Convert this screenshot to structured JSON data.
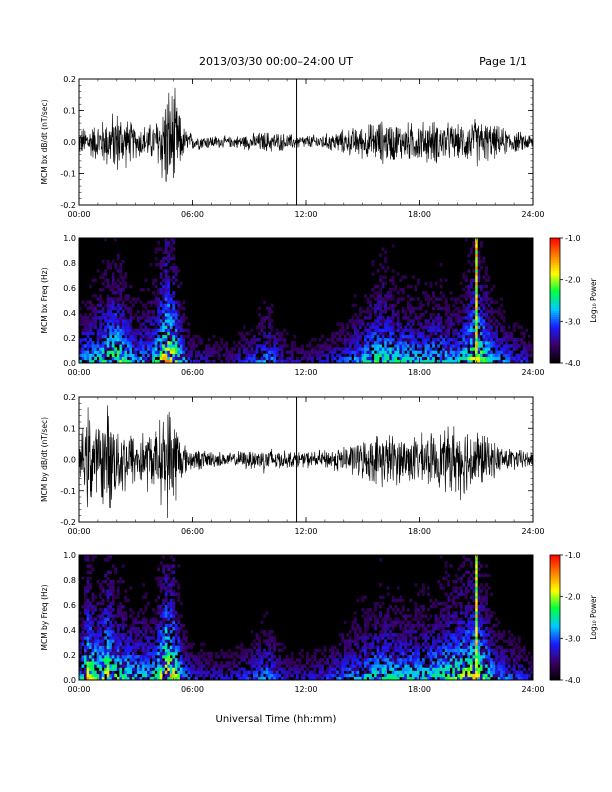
{
  "header": {
    "title": "2013/03/30  00:00–24:00 UT",
    "page": "Page 1/1"
  },
  "footer": {
    "xlabel": "Universal Time (hh:mm)"
  },
  "colors": {
    "trace": "#000000",
    "spectrogram_background": "#000000",
    "colorbar": [
      "#000000",
      "#3a0066",
      "#1a1aff",
      "#00c8ff",
      "#00ff40",
      "#ffff00",
      "#ff8000",
      "#ff0000"
    ]
  },
  "chart_data": [
    {
      "id": "bx-dbdt",
      "type": "line",
      "ylabel": "MCM bx dB/dt (nT/sec)",
      "ylim": [
        -0.2,
        0.2
      ],
      "yticks": [
        "-0.2",
        "-0.1",
        "0.0",
        "0.1",
        "0.2"
      ],
      "x_ticks": [
        "00:00",
        "06:00",
        "12:00",
        "18:00",
        "24:00"
      ],
      "xlim_hours": [
        0,
        24
      ],
      "spike_hours": [
        11.5
      ],
      "activity_envelope": {
        "hours": [
          0,
          1,
          2,
          3,
          4,
          4.6,
          5,
          5.5,
          6,
          8,
          10,
          11,
          12,
          13,
          14,
          15,
          16,
          17,
          18,
          19,
          20,
          21,
          22,
          23,
          24
        ],
        "amplitude": [
          0.05,
          0.07,
          0.12,
          0.06,
          0.07,
          0.2,
          0.2,
          0.06,
          0.03,
          0.02,
          0.04,
          0.03,
          0.025,
          0.03,
          0.045,
          0.06,
          0.08,
          0.07,
          0.075,
          0.08,
          0.06,
          0.09,
          0.06,
          0.04,
          0.03
        ]
      }
    },
    {
      "id": "bx-freq",
      "type": "heatmap",
      "ylabel": "MCM bx Freq (Hz)",
      "ylim": [
        0.0,
        1.0
      ],
      "yticks": [
        "0.0",
        "0.2",
        "0.4",
        "0.6",
        "0.8",
        "1.0"
      ],
      "x_ticks": [
        "00:00",
        "06:00",
        "12:00",
        "18:00",
        "24:00"
      ],
      "xlim_hours": [
        0,
        24
      ],
      "colorbar": {
        "label": "Log₁₀ Power",
        "ticks": [
          "-1.0",
          "-2.0",
          "-3.0",
          "-4.0"
        ],
        "range": [
          -4.0,
          -1.0
        ]
      },
      "highlight_hour": 21,
      "activity_envelope": {
        "hours": [
          0,
          1,
          2,
          3,
          4,
          4.6,
          5,
          5.5,
          6,
          8,
          10,
          11,
          12,
          13,
          14,
          15,
          16,
          17,
          18,
          19,
          20,
          21,
          22,
          23,
          24
        ],
        "amplitude": [
          0.5,
          0.6,
          0.8,
          0.5,
          0.6,
          1.0,
          0.9,
          0.5,
          0.3,
          0.25,
          0.5,
          0.3,
          0.25,
          0.3,
          0.4,
          0.55,
          0.7,
          0.6,
          0.55,
          0.6,
          0.5,
          0.9,
          0.5,
          0.4,
          0.3
        ]
      }
    },
    {
      "id": "by-dbdt",
      "type": "line",
      "ylabel": "MCM by dB/dt (nT/sec)",
      "ylim": [
        -0.2,
        0.2
      ],
      "yticks": [
        "-0.2",
        "-0.1",
        "0.0",
        "0.1",
        "0.2"
      ],
      "x_ticks": [
        "00:00",
        "06:00",
        "12:00",
        "18:00",
        "24:00"
      ],
      "xlim_hours": [
        0,
        24
      ],
      "spike_hours": [
        11.5
      ],
      "activity_envelope": {
        "hours": [
          0,
          0.5,
          1,
          1.5,
          2,
          3,
          3.5,
          4,
          4.6,
          5,
          5.5,
          6,
          8,
          10,
          11,
          12,
          13,
          14,
          15,
          16,
          17,
          18,
          19,
          20,
          21,
          22,
          23,
          24
        ],
        "amplitude": [
          0.05,
          0.2,
          0.12,
          0.2,
          0.14,
          0.1,
          0.12,
          0.1,
          0.2,
          0.2,
          0.06,
          0.04,
          0.025,
          0.05,
          0.03,
          0.03,
          0.035,
          0.05,
          0.07,
          0.1,
          0.09,
          0.09,
          0.1,
          0.14,
          0.12,
          0.06,
          0.04,
          0.03
        ]
      }
    },
    {
      "id": "by-freq",
      "type": "heatmap",
      "ylabel": "MCM by Freq (Hz)",
      "ylim": [
        0.0,
        1.0
      ],
      "yticks": [
        "0.0",
        "0.2",
        "0.4",
        "0.6",
        "0.8",
        "1.0"
      ],
      "x_ticks": [
        "00:00",
        "06:00",
        "12:00",
        "18:00",
        "24:00"
      ],
      "xlim_hours": [
        0,
        24
      ],
      "colorbar": {
        "label": "Log₁₀ Power",
        "ticks": [
          "-1.0",
          "-2.0",
          "-3.0",
          "-4.0"
        ],
        "range": [
          -4.0,
          -1.0
        ]
      },
      "highlight_hour": 21,
      "activity_envelope": {
        "hours": [
          0,
          0.5,
          1,
          1.5,
          2,
          3,
          3.5,
          4,
          4.6,
          5,
          5.5,
          6,
          8,
          10,
          11,
          12,
          13,
          14,
          15,
          16,
          17,
          18,
          19,
          20,
          21,
          22,
          23,
          24
        ],
        "amplitude": [
          0.5,
          0.9,
          0.7,
          0.9,
          0.7,
          0.6,
          0.6,
          0.6,
          1.0,
          0.9,
          0.5,
          0.35,
          0.3,
          0.5,
          0.3,
          0.3,
          0.35,
          0.45,
          0.55,
          0.65,
          0.6,
          0.6,
          0.65,
          0.75,
          0.9,
          0.5,
          0.4,
          0.3
        ]
      }
    }
  ]
}
